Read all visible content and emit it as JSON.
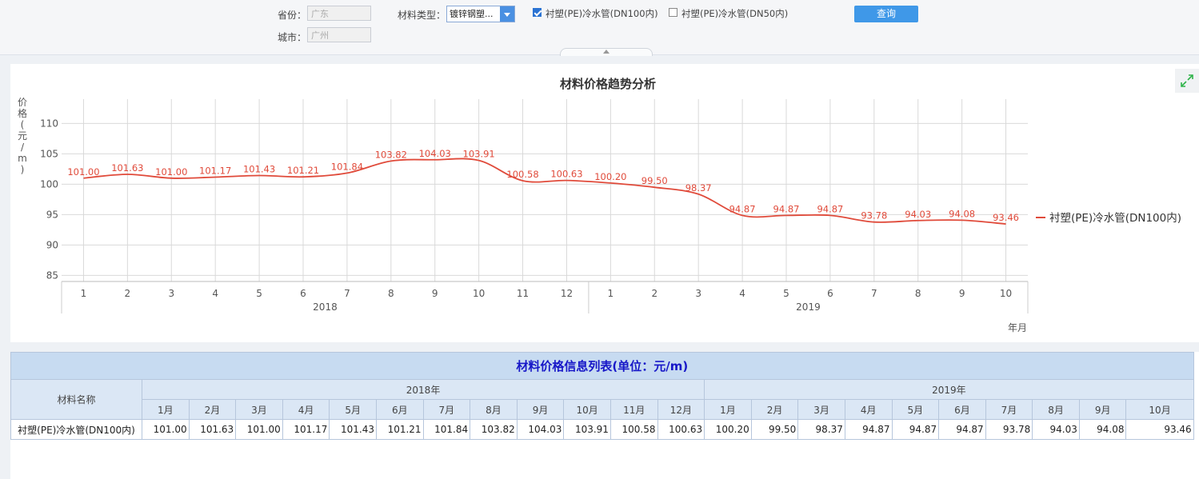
{
  "filter": {
    "province_label": "省份：",
    "province_value": "广东",
    "city_label": "城市：",
    "city_value": "广州",
    "material_type_label": "材料类型：",
    "material_type_value": "镀锌钢塑...",
    "options": [
      {
        "label": "衬塑(PE)冷水管(DN100内)",
        "checked": true
      },
      {
        "label": "衬塑(PE)冷水管(DN50内)",
        "checked": false
      }
    ],
    "query_button": "查询"
  },
  "chart_data": {
    "type": "line",
    "title": "材料价格趋势分析",
    "ylabel": "价格(元/m)",
    "xlabel": "年月",
    "ylim": [
      85,
      110
    ],
    "yticks": [
      85,
      90,
      95,
      100,
      105,
      110
    ],
    "grid": true,
    "legend_position": "right",
    "categories": [
      "1",
      "2",
      "3",
      "4",
      "5",
      "6",
      "7",
      "8",
      "9",
      "10",
      "11",
      "12",
      "1",
      "2",
      "3",
      "4",
      "5",
      "6",
      "7",
      "8",
      "9",
      "10"
    ],
    "year_groups": [
      {
        "label": "2018",
        "span": 12
      },
      {
        "label": "2019",
        "span": 10
      }
    ],
    "series": [
      {
        "name": "衬塑(PE)冷水管(DN100内)",
        "color": "#e04a3a",
        "values": [
          101.0,
          101.63,
          101.0,
          101.17,
          101.43,
          101.21,
          101.84,
          103.82,
          104.03,
          103.91,
          100.58,
          100.63,
          100.2,
          99.5,
          98.37,
          94.87,
          94.87,
          94.87,
          93.78,
          94.03,
          94.08,
          93.46
        ],
        "labels": [
          "101.00",
          "101.63",
          "101.00",
          "101.17",
          "101.43",
          "101.21",
          "101.84",
          "103.82",
          "104.03",
          "103.91",
          "100.58",
          "100.63",
          "100.20",
          "99.50",
          "98.37",
          "94.87",
          "94.87",
          "94.87",
          "93.78",
          "94.03",
          "94.08",
          "93.46"
        ]
      }
    ]
  },
  "table": {
    "caption": "材料价格信息列表(单位：元/m)",
    "name_header": "材料名称",
    "years": [
      {
        "label": "2018年",
        "months": [
          "1月",
          "2月",
          "3月",
          "4月",
          "5月",
          "6月",
          "7月",
          "8月",
          "9月",
          "10月",
          "11月",
          "12月"
        ]
      },
      {
        "label": "2019年",
        "months": [
          "1月",
          "2月",
          "3月",
          "4月",
          "5月",
          "6月",
          "7月",
          "8月",
          "9月",
          "10月"
        ]
      }
    ],
    "rows": [
      {
        "name": "衬塑(PE)冷水管(DN100内)",
        "values": [
          "101.00",
          "101.63",
          "101.00",
          "101.17",
          "101.43",
          "101.21",
          "101.84",
          "103.82",
          "104.03",
          "103.91",
          "100.58",
          "100.63",
          "100.20",
          "99.50",
          "98.37",
          "94.87",
          "94.87",
          "94.87",
          "93.78",
          "94.03",
          "94.08",
          "93.46"
        ]
      }
    ]
  },
  "colors": {
    "accent": "#3f98e8",
    "series": "#e04a3a",
    "table_header": "#c7dbf1"
  }
}
